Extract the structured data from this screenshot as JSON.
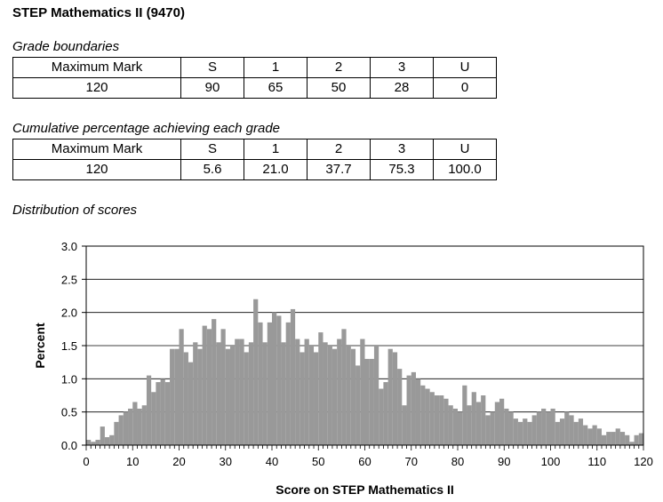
{
  "title": "STEP Mathematics II (9470)",
  "grade_boundaries": {
    "caption": "Grade boundaries",
    "headers": [
      "Maximum Mark",
      "S",
      "1",
      "2",
      "3",
      "U"
    ],
    "values": [
      "120",
      "90",
      "65",
      "50",
      "28",
      "0"
    ]
  },
  "cumulative": {
    "caption": "Cumulative percentage achieving each grade",
    "headers": [
      "Maximum Mark",
      "S",
      "1",
      "2",
      "3",
      "U"
    ],
    "values": [
      "120",
      "5.6",
      "21.0",
      "37.7",
      "75.3",
      "100.0"
    ]
  },
  "distribution_caption": "Distribution of scores",
  "chart_data": {
    "type": "bar",
    "xlabel": "Score on STEP Mathematics II",
    "ylabel": "Percent",
    "xlim": [
      0,
      120
    ],
    "ylim": [
      0,
      3
    ],
    "x_ticks": [
      "0",
      "10",
      "20",
      "30",
      "40",
      "50",
      "60",
      "70",
      "80",
      "90",
      "100",
      "110",
      "120"
    ],
    "y_ticks": [
      "0.0",
      "0.5",
      "1.0",
      "1.5",
      "2.0",
      "2.5",
      "3.0"
    ],
    "grid": "horizontal",
    "bar_color": "#999999",
    "x": [
      0,
      1,
      2,
      3,
      4,
      5,
      6,
      7,
      8,
      9,
      10,
      11,
      12,
      13,
      14,
      15,
      16,
      17,
      18,
      19,
      20,
      21,
      22,
      23,
      24,
      25,
      26,
      27,
      28,
      29,
      30,
      31,
      32,
      33,
      34,
      35,
      36,
      37,
      38,
      39,
      40,
      41,
      42,
      43,
      44,
      45,
      46,
      47,
      48,
      49,
      50,
      51,
      52,
      53,
      54,
      55,
      56,
      57,
      58,
      59,
      60,
      61,
      62,
      63,
      64,
      65,
      66,
      67,
      68,
      69,
      70,
      71,
      72,
      73,
      74,
      75,
      76,
      77,
      78,
      79,
      80,
      81,
      82,
      83,
      84,
      85,
      86,
      87,
      88,
      89,
      90,
      91,
      92,
      93,
      94,
      95,
      96,
      97,
      98,
      99,
      100,
      101,
      102,
      103,
      104,
      105,
      106,
      107,
      108,
      109,
      110,
      111,
      112,
      113,
      114,
      115,
      116,
      117,
      118,
      119,
      120
    ],
    "values": [
      0.08,
      0.05,
      0.08,
      0.28,
      0.12,
      0.15,
      0.35,
      0.45,
      0.5,
      0.55,
      0.65,
      0.55,
      0.6,
      1.05,
      0.8,
      0.95,
      1.0,
      0.95,
      1.45,
      1.45,
      1.75,
      1.4,
      1.25,
      1.55,
      1.45,
      1.8,
      1.75,
      1.9,
      1.55,
      1.75,
      1.45,
      1.5,
      1.6,
      1.6,
      1.4,
      1.55,
      2.2,
      1.85,
      1.55,
      1.85,
      2.0,
      1.95,
      1.55,
      1.85,
      2.05,
      1.6,
      1.4,
      1.6,
      1.5,
      1.4,
      1.7,
      1.55,
      1.5,
      1.45,
      1.6,
      1.75,
      1.5,
      1.45,
      1.2,
      1.6,
      1.3,
      1.3,
      1.5,
      0.85,
      0.95,
      1.45,
      1.4,
      1.15,
      0.6,
      1.05,
      1.1,
      1.0,
      0.9,
      0.85,
      0.8,
      0.75,
      0.75,
      0.7,
      0.6,
      0.55,
      0.5,
      0.9,
      0.6,
      0.8,
      0.65,
      0.75,
      0.45,
      0.5,
      0.65,
      0.7,
      0.55,
      0.5,
      0.4,
      0.35,
      0.4,
      0.35,
      0.45,
      0.5,
      0.55,
      0.5,
      0.55,
      0.35,
      0.4,
      0.5,
      0.45,
      0.35,
      0.4,
      0.3,
      0.25,
      0.3,
      0.25,
      0.15,
      0.2,
      0.2,
      0.25,
      0.2,
      0.15,
      0.05,
      0.15,
      0.18,
      0.0
    ],
    "value_overrides_note_free": true
  }
}
